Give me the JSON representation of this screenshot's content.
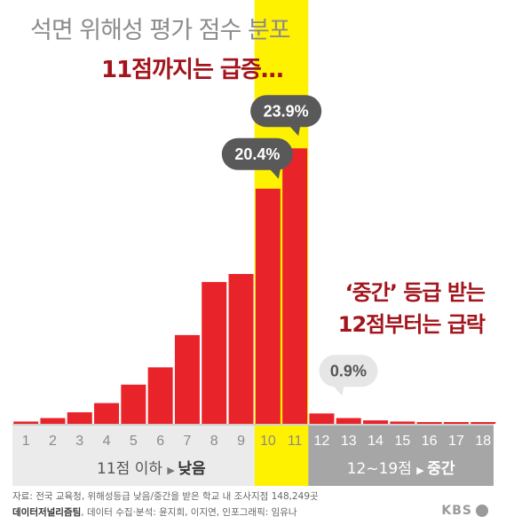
{
  "title": "석면 위해성 평가 점수 분포",
  "subtitle": "11점까지는 급증…",
  "annotation": {
    "line1": "‘중간’ 등급 받는",
    "line2": "12점부터는 급락"
  },
  "callouts": {
    "c11": "23.9%",
    "c10": "20.4%",
    "c12": "0.9%"
  },
  "bands": {
    "low_label": "11점 이하",
    "low_grade": "낮음",
    "mid_label": "12~19점",
    "mid_grade": "중간"
  },
  "source": "자료: 전국 교육청, 위해성등급 낮음/중간을 받은 학교 내 조사지점 148,249곳",
  "credit_team": "데이터저널리즘팀",
  "credit_rest": ", 데이터 수집·분석: 윤지희, 이지연, 인포그래픽: 임유나",
  "logo": "KBS",
  "colors": {
    "bar": "#e8242a",
    "highlight": "#fff200",
    "callout": "#595959",
    "callout_light": "#e6e6e6",
    "accent_text": "#a3141c"
  },
  "chart_data": {
    "type": "bar",
    "title": "석면 위해성 평가 점수 분포",
    "x": [
      1,
      2,
      3,
      4,
      5,
      6,
      7,
      8,
      9,
      10,
      11,
      12,
      13,
      14,
      15,
      16,
      17,
      18
    ],
    "values": [
      0.2,
      0.5,
      1.0,
      1.8,
      3.4,
      4.9,
      7.7,
      12.3,
      13.0,
      20.4,
      23.9,
      0.9,
      0.5,
      0.3,
      0.2,
      0.12,
      0.08,
      0.05
    ],
    "unit": "%",
    "highlight": [
      10,
      11
    ],
    "ylim": [
      0,
      24
    ]
  }
}
